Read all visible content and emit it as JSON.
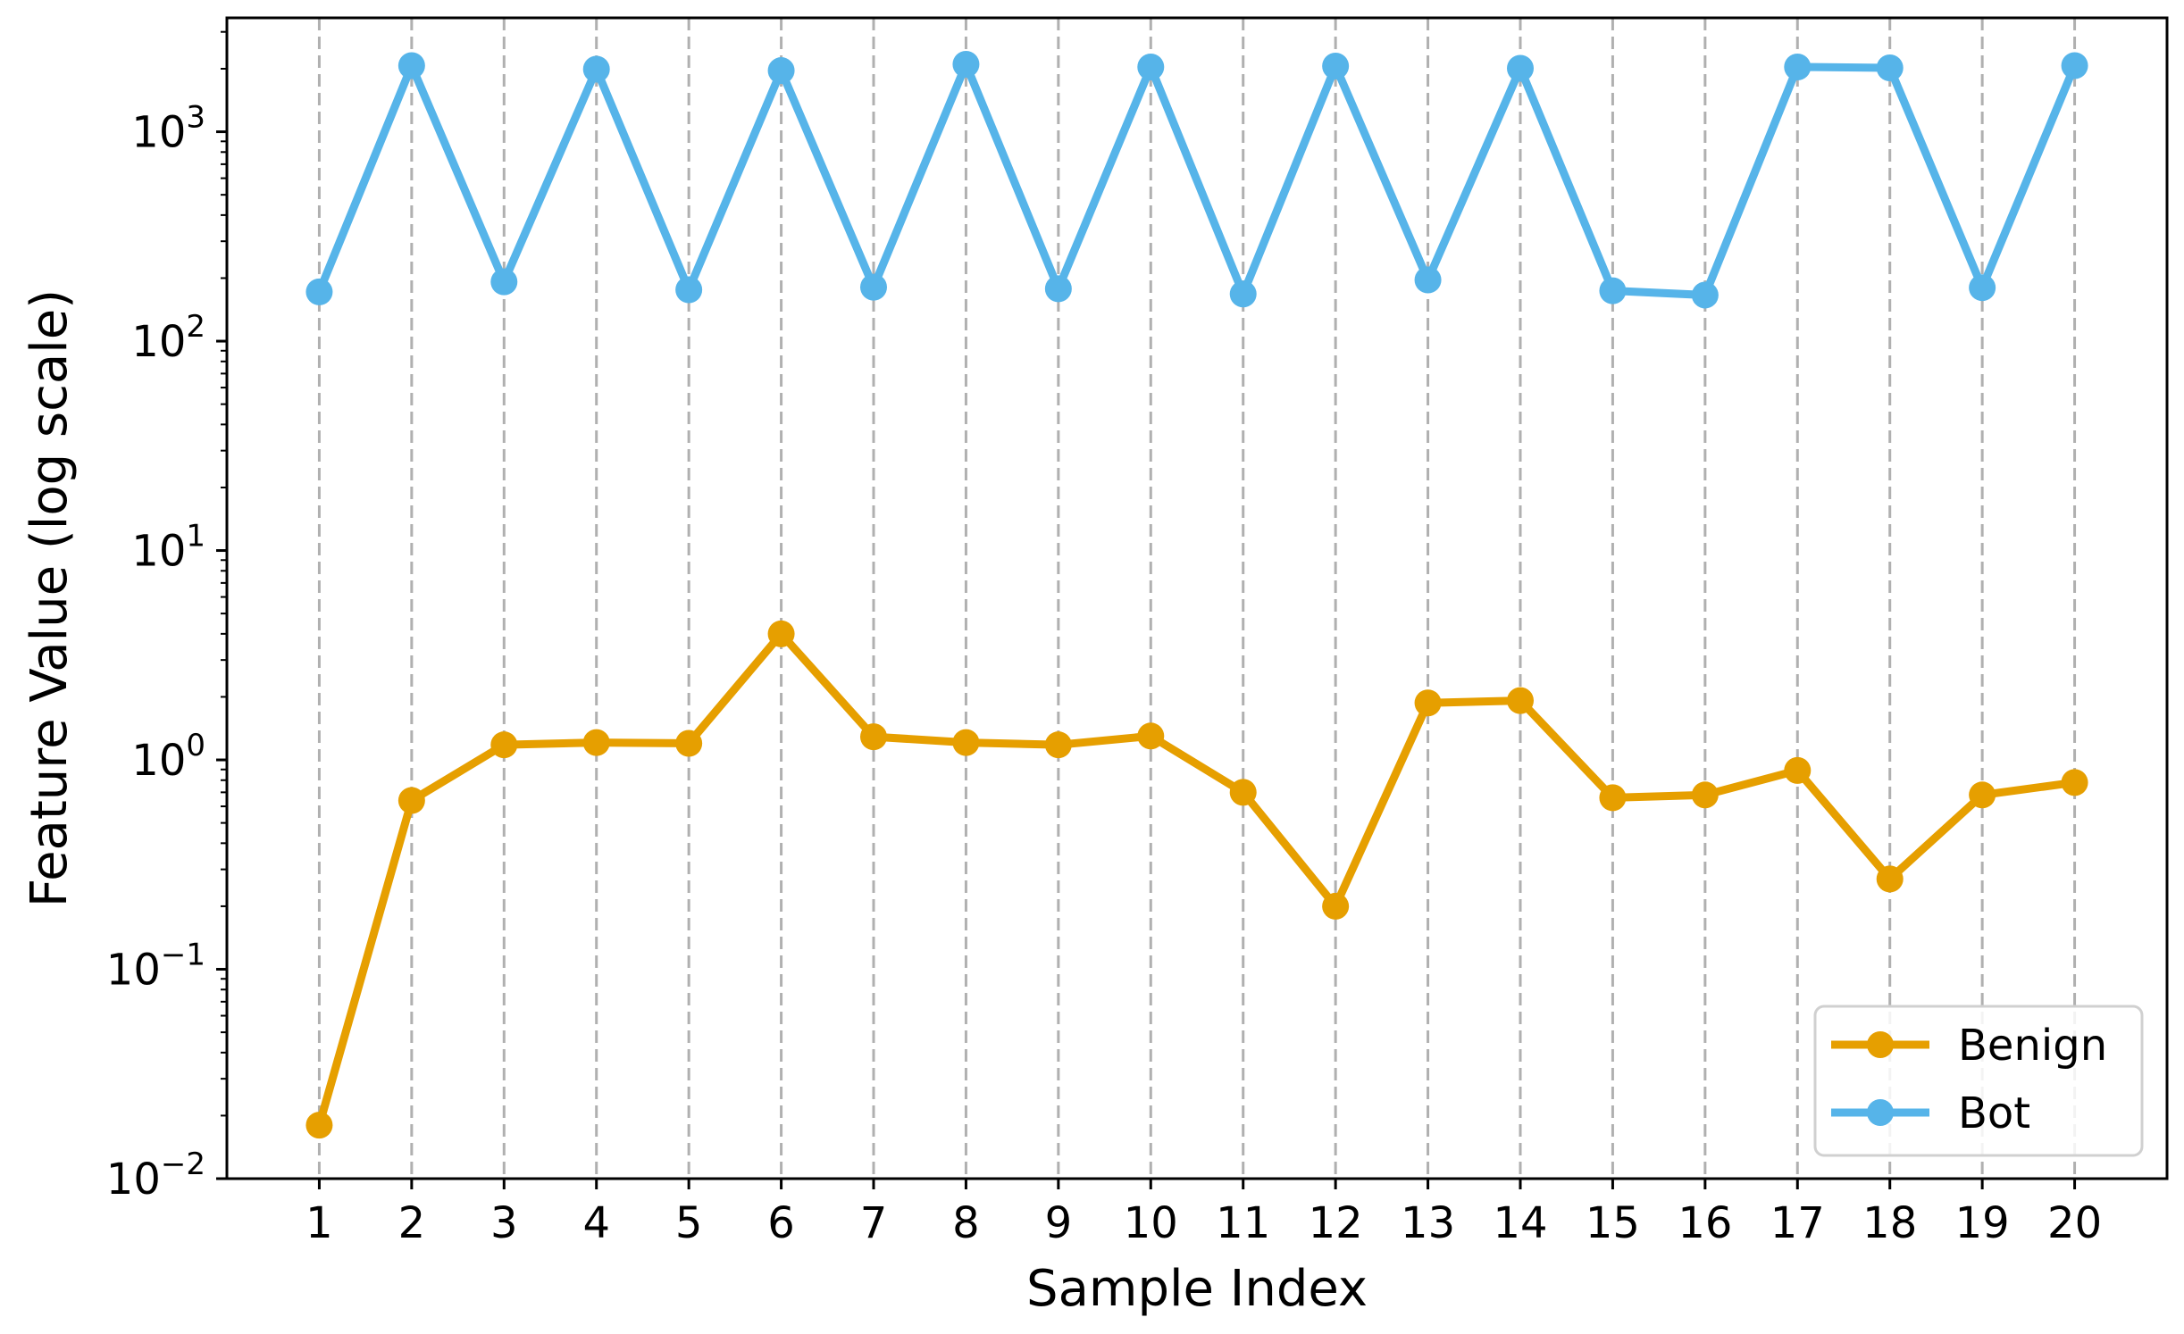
{
  "chart_data": {
    "type": "line",
    "xlabel": "Sample Index",
    "ylabel": "Feature Value (log scale)",
    "yscale": "log",
    "ylim": [
      0.01,
      3500
    ],
    "xlim": [
      0,
      21
    ],
    "x": [
      1,
      2,
      3,
      4,
      5,
      6,
      7,
      8,
      9,
      10,
      11,
      12,
      13,
      14,
      15,
      16,
      17,
      18,
      19,
      20
    ],
    "x_tick_labels": [
      "1",
      "2",
      "3",
      "4",
      "5",
      "6",
      "7",
      "8",
      "9",
      "10",
      "11",
      "12",
      "13",
      "14",
      "15",
      "16",
      "17",
      "18",
      "19",
      "20"
    ],
    "y_ticks": [
      {
        "value": 0.01,
        "base": "10",
        "exp": "−2"
      },
      {
        "value": 0.1,
        "base": "10",
        "exp": "−1"
      },
      {
        "value": 1,
        "base": "10",
        "exp": "0"
      },
      {
        "value": 10,
        "base": "10",
        "exp": "1"
      },
      {
        "value": 100,
        "base": "10",
        "exp": "2"
      },
      {
        "value": 1000,
        "base": "10",
        "exp": "3"
      }
    ],
    "grid": "vertical dashed",
    "legend_position": "lower-right",
    "series": [
      {
        "name": "Benign",
        "color": "#E69F00",
        "values": [
          0.018,
          0.64,
          1.18,
          1.21,
          1.2,
          4.0,
          1.29,
          1.21,
          1.18,
          1.3,
          0.7,
          0.2,
          1.87,
          1.92,
          0.66,
          0.68,
          0.89,
          0.27,
          0.68,
          0.78
        ]
      },
      {
        "name": "Bot",
        "color": "#56B4E9",
        "values": [
          172,
          2070,
          192,
          1990,
          176,
          1960,
          181,
          2100,
          178,
          2040,
          168,
          2060,
          196,
          2010,
          174,
          166,
          2040,
          2020,
          180,
          2070
        ]
      }
    ]
  }
}
